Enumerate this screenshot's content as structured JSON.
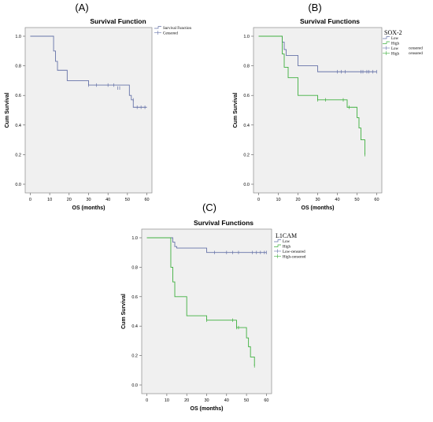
{
  "chart_data": [
    {
      "type": "line",
      "panel": "(A)",
      "title": "Survival Function",
      "xlabel": "OS (months)",
      "ylabel": "Cum Survival",
      "xlim": [
        0,
        60
      ],
      "ylim": [
        0,
        1
      ],
      "xticks": [
        0,
        10,
        20,
        30,
        40,
        50,
        60
      ],
      "yticks": [
        0.0,
        0.2,
        0.4,
        0.6,
        0.8,
        1.0
      ],
      "legend": {
        "title": "",
        "placement": "top-right",
        "entries": [
          {
            "label": "Survival Function",
            "color": "#6673a8",
            "kind": "line"
          },
          {
            "label": "Censored",
            "color": "#6673a8",
            "kind": "censor"
          }
        ]
      },
      "series": [
        {
          "color": "#6673a8",
          "x": [
            0,
            12,
            13,
            14,
            19,
            30,
            51,
            52,
            53,
            60
          ],
          "y": [
            1.0,
            0.9,
            0.83,
            0.77,
            0.7,
            0.67,
            0.6,
            0.57,
            0.52,
            0.52
          ],
          "censored": [
            [
              30,
              0.67
            ],
            [
              34,
              0.67
            ],
            [
              40,
              0.67
            ],
            [
              43,
              0.67
            ],
            [
              45,
              0.65
            ],
            [
              46,
              0.65
            ],
            [
              53,
              0.57
            ],
            [
              55,
              0.52
            ],
            [
              57,
              0.52
            ],
            [
              59,
              0.52
            ]
          ]
        }
      ]
    },
    {
      "type": "line",
      "panel": "(B)",
      "title": "Survival Functions",
      "xlabel": "OS (months)",
      "ylabel": "Cum Survival",
      "xlim": [
        0,
        60
      ],
      "ylim": [
        0,
        1
      ],
      "xticks": [
        0,
        10,
        20,
        30,
        40,
        50,
        60
      ],
      "yticks": [
        0.0,
        0.2,
        0.4,
        0.6,
        0.8,
        1.0
      ],
      "legend": {
        "title": "SOX-2",
        "placement": "top-right",
        "entries": [
          {
            "label": "Low",
            "color": "#6673a8",
            "kind": "line"
          },
          {
            "label": "High",
            "color": "#3fb03f",
            "kind": "line"
          },
          {
            "label": "Low",
            "color": "#6673a8",
            "kind": "censor"
          },
          {
            "label": "High",
            "color": "#3fb03f",
            "kind": "censor"
          }
        ],
        "side_labels": [
          "censored",
          "censored"
        ]
      },
      "series": [
        {
          "name": "Low",
          "color": "#6673a8",
          "x": [
            0,
            12,
            13,
            14,
            20,
            30,
            60
          ],
          "y": [
            1.0,
            0.96,
            0.91,
            0.87,
            0.8,
            0.76,
            0.76
          ],
          "censored": [
            [
              40,
              0.76
            ],
            [
              42,
              0.76
            ],
            [
              44,
              0.76
            ],
            [
              52,
              0.76
            ],
            [
              53,
              0.76
            ],
            [
              55,
              0.76
            ],
            [
              56,
              0.76
            ],
            [
              58,
              0.76
            ],
            [
              60,
              0.76
            ]
          ]
        },
        {
          "name": "High",
          "color": "#3fb03f",
          "x": [
            0,
            12,
            13,
            15,
            20,
            30,
            45,
            50,
            51,
            52,
            54
          ],
          "y": [
            1.0,
            0.88,
            0.79,
            0.72,
            0.6,
            0.57,
            0.52,
            0.45,
            0.38,
            0.3,
            0.2
          ],
          "censored": [
            [
              30,
              0.57
            ],
            [
              34,
              0.57
            ],
            [
              43,
              0.57
            ],
            [
              46,
              0.52
            ],
            [
              54,
              0.2
            ]
          ]
        }
      ]
    },
    {
      "type": "line",
      "panel": "(C)",
      "title": "Survival Functions",
      "xlabel": "OS (months)",
      "ylabel": "Cum Survival",
      "xlim": [
        0,
        60
      ],
      "ylim": [
        0,
        1
      ],
      "xticks": [
        0,
        10,
        20,
        30,
        40,
        50,
        60
      ],
      "yticks": [
        0.0,
        0.2,
        0.4,
        0.6,
        0.8,
        1.0
      ],
      "legend": {
        "title": "L1CAM",
        "placement": "top-right",
        "entries": [
          {
            "label": "Low",
            "color": "#6673a8",
            "kind": "line"
          },
          {
            "label": "High",
            "color": "#3fb03f",
            "kind": "line"
          },
          {
            "label": "Low-censored",
            "color": "#6673a8",
            "kind": "censor"
          },
          {
            "label": "High-censored",
            "color": "#3fb03f",
            "kind": "censor"
          }
        ]
      },
      "series": [
        {
          "name": "Low",
          "color": "#6673a8",
          "x": [
            0,
            13,
            14,
            15,
            30,
            60
          ],
          "y": [
            1.0,
            0.97,
            0.94,
            0.93,
            0.9,
            0.9
          ],
          "censored": [
            [
              34,
              0.9
            ],
            [
              40,
              0.9
            ],
            [
              43,
              0.9
            ],
            [
              46,
              0.9
            ],
            [
              53,
              0.9
            ],
            [
              55,
              0.9
            ],
            [
              57,
              0.9
            ],
            [
              59,
              0.9
            ],
            [
              60,
              0.9
            ]
          ]
        },
        {
          "name": "High",
          "color": "#3fb03f",
          "x": [
            0,
            12,
            13,
            14,
            16,
            20,
            30,
            45,
            50,
            51,
            52,
            54
          ],
          "y": [
            1.0,
            0.8,
            0.7,
            0.6,
            0.6,
            0.47,
            0.44,
            0.39,
            0.32,
            0.26,
            0.19,
            0.13
          ],
          "censored": [
            [
              30,
              0.44
            ],
            [
              43,
              0.44
            ],
            [
              45,
              0.39
            ],
            [
              46,
              0.39
            ],
            [
              54,
              0.13
            ]
          ]
        }
      ]
    }
  ]
}
